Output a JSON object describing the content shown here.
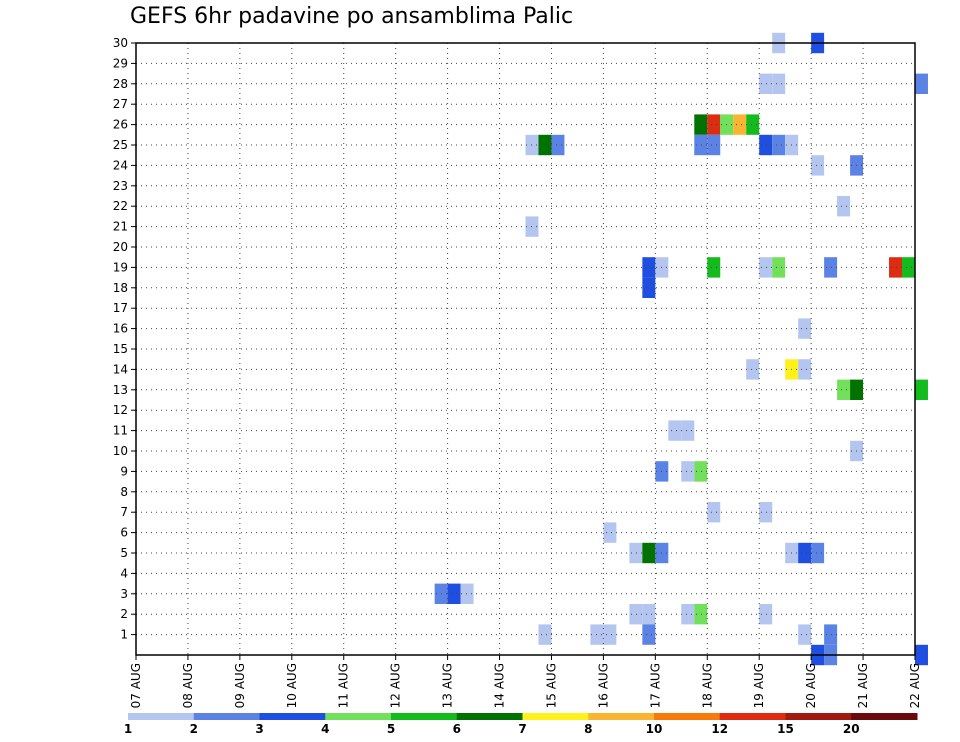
{
  "chart_data": {
    "type": "heatmap",
    "title": "GEFS 6hr padavine po ansamblima Palic",
    "xlabel": "",
    "ylabel": "",
    "x_ticks": [
      "07 AUG",
      "08 AUG",
      "09 AUG",
      "10 AUG",
      "11 AUG",
      "12 AUG",
      "13 AUG",
      "14 AUG",
      "15 AUG",
      "16 AUG",
      "17 AUG",
      "18 AUG",
      "19 AUG",
      "20 AUG",
      "21 AUG",
      "22 AUG"
    ],
    "x_range_days": [
      0,
      15
    ],
    "y_ticks": [
      1,
      2,
      3,
      4,
      5,
      6,
      7,
      8,
      9,
      10,
      11,
      12,
      13,
      14,
      15,
      16,
      17,
      18,
      19,
      20,
      21,
      22,
      23,
      24,
      25,
      26,
      27,
      28,
      29,
      30
    ],
    "y_range": [
      0,
      30
    ],
    "grid": true,
    "colorbar": {
      "labels": [
        "1",
        "2",
        "3",
        "4",
        "5",
        "6",
        "7",
        "8",
        "10",
        "12",
        "15",
        "20"
      ],
      "colors": [
        "#b4c6f0",
        "#5b83e6",
        "#1f4fe0",
        "#72e05a",
        "#13bb1c",
        "#007200",
        "#fff21a",
        "#f9b431",
        "#f87a0b",
        "#dc2d12",
        "#a11a0d",
        "#6b0a0a"
      ]
    },
    "cells": [
      {
        "member": 30,
        "day": 12.25,
        "value": 1
      },
      {
        "member": 30,
        "day": 13.0,
        "value": 3
      },
      {
        "member": 28,
        "day": 12.0,
        "value": 1
      },
      {
        "member": 28,
        "day": 12.25,
        "value": 1
      },
      {
        "member": 28,
        "day": 15.0,
        "value": 2
      },
      {
        "member": 26,
        "day": 10.75,
        "value": 6
      },
      {
        "member": 26,
        "day": 11.0,
        "value": 12
      },
      {
        "member": 26,
        "day": 11.25,
        "value": 4
      },
      {
        "member": 26,
        "day": 11.5,
        "value": 8
      },
      {
        "member": 26,
        "day": 11.75,
        "value": 5
      },
      {
        "member": 25,
        "day": 7.5,
        "value": 1
      },
      {
        "member": 25,
        "day": 7.75,
        "value": 6
      },
      {
        "member": 25,
        "day": 8.0,
        "value": 2
      },
      {
        "member": 25,
        "day": 10.75,
        "value": 2
      },
      {
        "member": 25,
        "day": 11.0,
        "value": 2
      },
      {
        "member": 25,
        "day": 12.0,
        "value": 3
      },
      {
        "member": 25,
        "day": 12.25,
        "value": 2
      },
      {
        "member": 25,
        "day": 12.5,
        "value": 1
      },
      {
        "member": 24,
        "day": 13.0,
        "value": 1
      },
      {
        "member": 24,
        "day": 13.75,
        "value": 2
      },
      {
        "member": 22,
        "day": 13.5,
        "value": 1
      },
      {
        "member": 21,
        "day": 7.5,
        "value": 1
      },
      {
        "member": 19,
        "day": 9.75,
        "value": 3
      },
      {
        "member": 19,
        "day": 10.0,
        "value": 1
      },
      {
        "member": 19,
        "day": 11.0,
        "value": 5
      },
      {
        "member": 19,
        "day": 12.0,
        "value": 1
      },
      {
        "member": 19,
        "day": 12.25,
        "value": 4
      },
      {
        "member": 19,
        "day": 13.25,
        "value": 2
      },
      {
        "member": 19,
        "day": 14.5,
        "value": 12
      },
      {
        "member": 19,
        "day": 14.75,
        "value": 5
      },
      {
        "member": 18,
        "day": 9.75,
        "value": 3
      },
      {
        "member": 16,
        "day": 12.75,
        "value": 1
      },
      {
        "member": 14,
        "day": 11.75,
        "value": 1
      },
      {
        "member": 14,
        "day": 12.5,
        "value": 7
      },
      {
        "member": 14,
        "day": 12.75,
        "value": 1
      },
      {
        "member": 13,
        "day": 13.5,
        "value": 4
      },
      {
        "member": 13,
        "day": 13.75,
        "value": 6
      },
      {
        "member": 13,
        "day": 15.0,
        "value": 5
      },
      {
        "member": 11,
        "day": 10.25,
        "value": 1
      },
      {
        "member": 11,
        "day": 10.5,
        "value": 1
      },
      {
        "member": 10,
        "day": 13.75,
        "value": 1
      },
      {
        "member": 9,
        "day": 10.0,
        "value": 2
      },
      {
        "member": 9,
        "day": 10.5,
        "value": 1
      },
      {
        "member": 9,
        "day": 10.75,
        "value": 4
      },
      {
        "member": 7,
        "day": 11.0,
        "value": 1
      },
      {
        "member": 7,
        "day": 12.0,
        "value": 1
      },
      {
        "member": 6,
        "day": 9.0,
        "value": 1
      },
      {
        "member": 5,
        "day": 9.5,
        "value": 1
      },
      {
        "member": 5,
        "day": 9.75,
        "value": 6
      },
      {
        "member": 5,
        "day": 10.0,
        "value": 2
      },
      {
        "member": 5,
        "day": 12.5,
        "value": 1
      },
      {
        "member": 5,
        "day": 12.75,
        "value": 3
      },
      {
        "member": 5,
        "day": 13.0,
        "value": 2
      },
      {
        "member": 3,
        "day": 5.75,
        "value": 2
      },
      {
        "member": 3,
        "day": 6.0,
        "value": 3
      },
      {
        "member": 3,
        "day": 6.25,
        "value": 1
      },
      {
        "member": 2,
        "day": 9.5,
        "value": 1
      },
      {
        "member": 2,
        "day": 9.75,
        "value": 1
      },
      {
        "member": 2,
        "day": 10.5,
        "value": 1
      },
      {
        "member": 2,
        "day": 10.75,
        "value": 4
      },
      {
        "member": 2,
        "day": 12.0,
        "value": 1
      },
      {
        "member": 1,
        "day": 7.75,
        "value": 1
      },
      {
        "member": 1,
        "day": 8.75,
        "value": 1
      },
      {
        "member": 1,
        "day": 9.0,
        "value": 1
      },
      {
        "member": 1,
        "day": 9.75,
        "value": 2
      },
      {
        "member": 1,
        "day": 12.75,
        "value": 1
      },
      {
        "member": 1,
        "day": 13.25,
        "value": 2
      },
      {
        "member": 0,
        "day": 13.25,
        "value": 2
      },
      {
        "member": 0,
        "day": 13.0,
        "value": 3
      },
      {
        "member": 0,
        "day": 15.0,
        "value": 3
      }
    ]
  }
}
